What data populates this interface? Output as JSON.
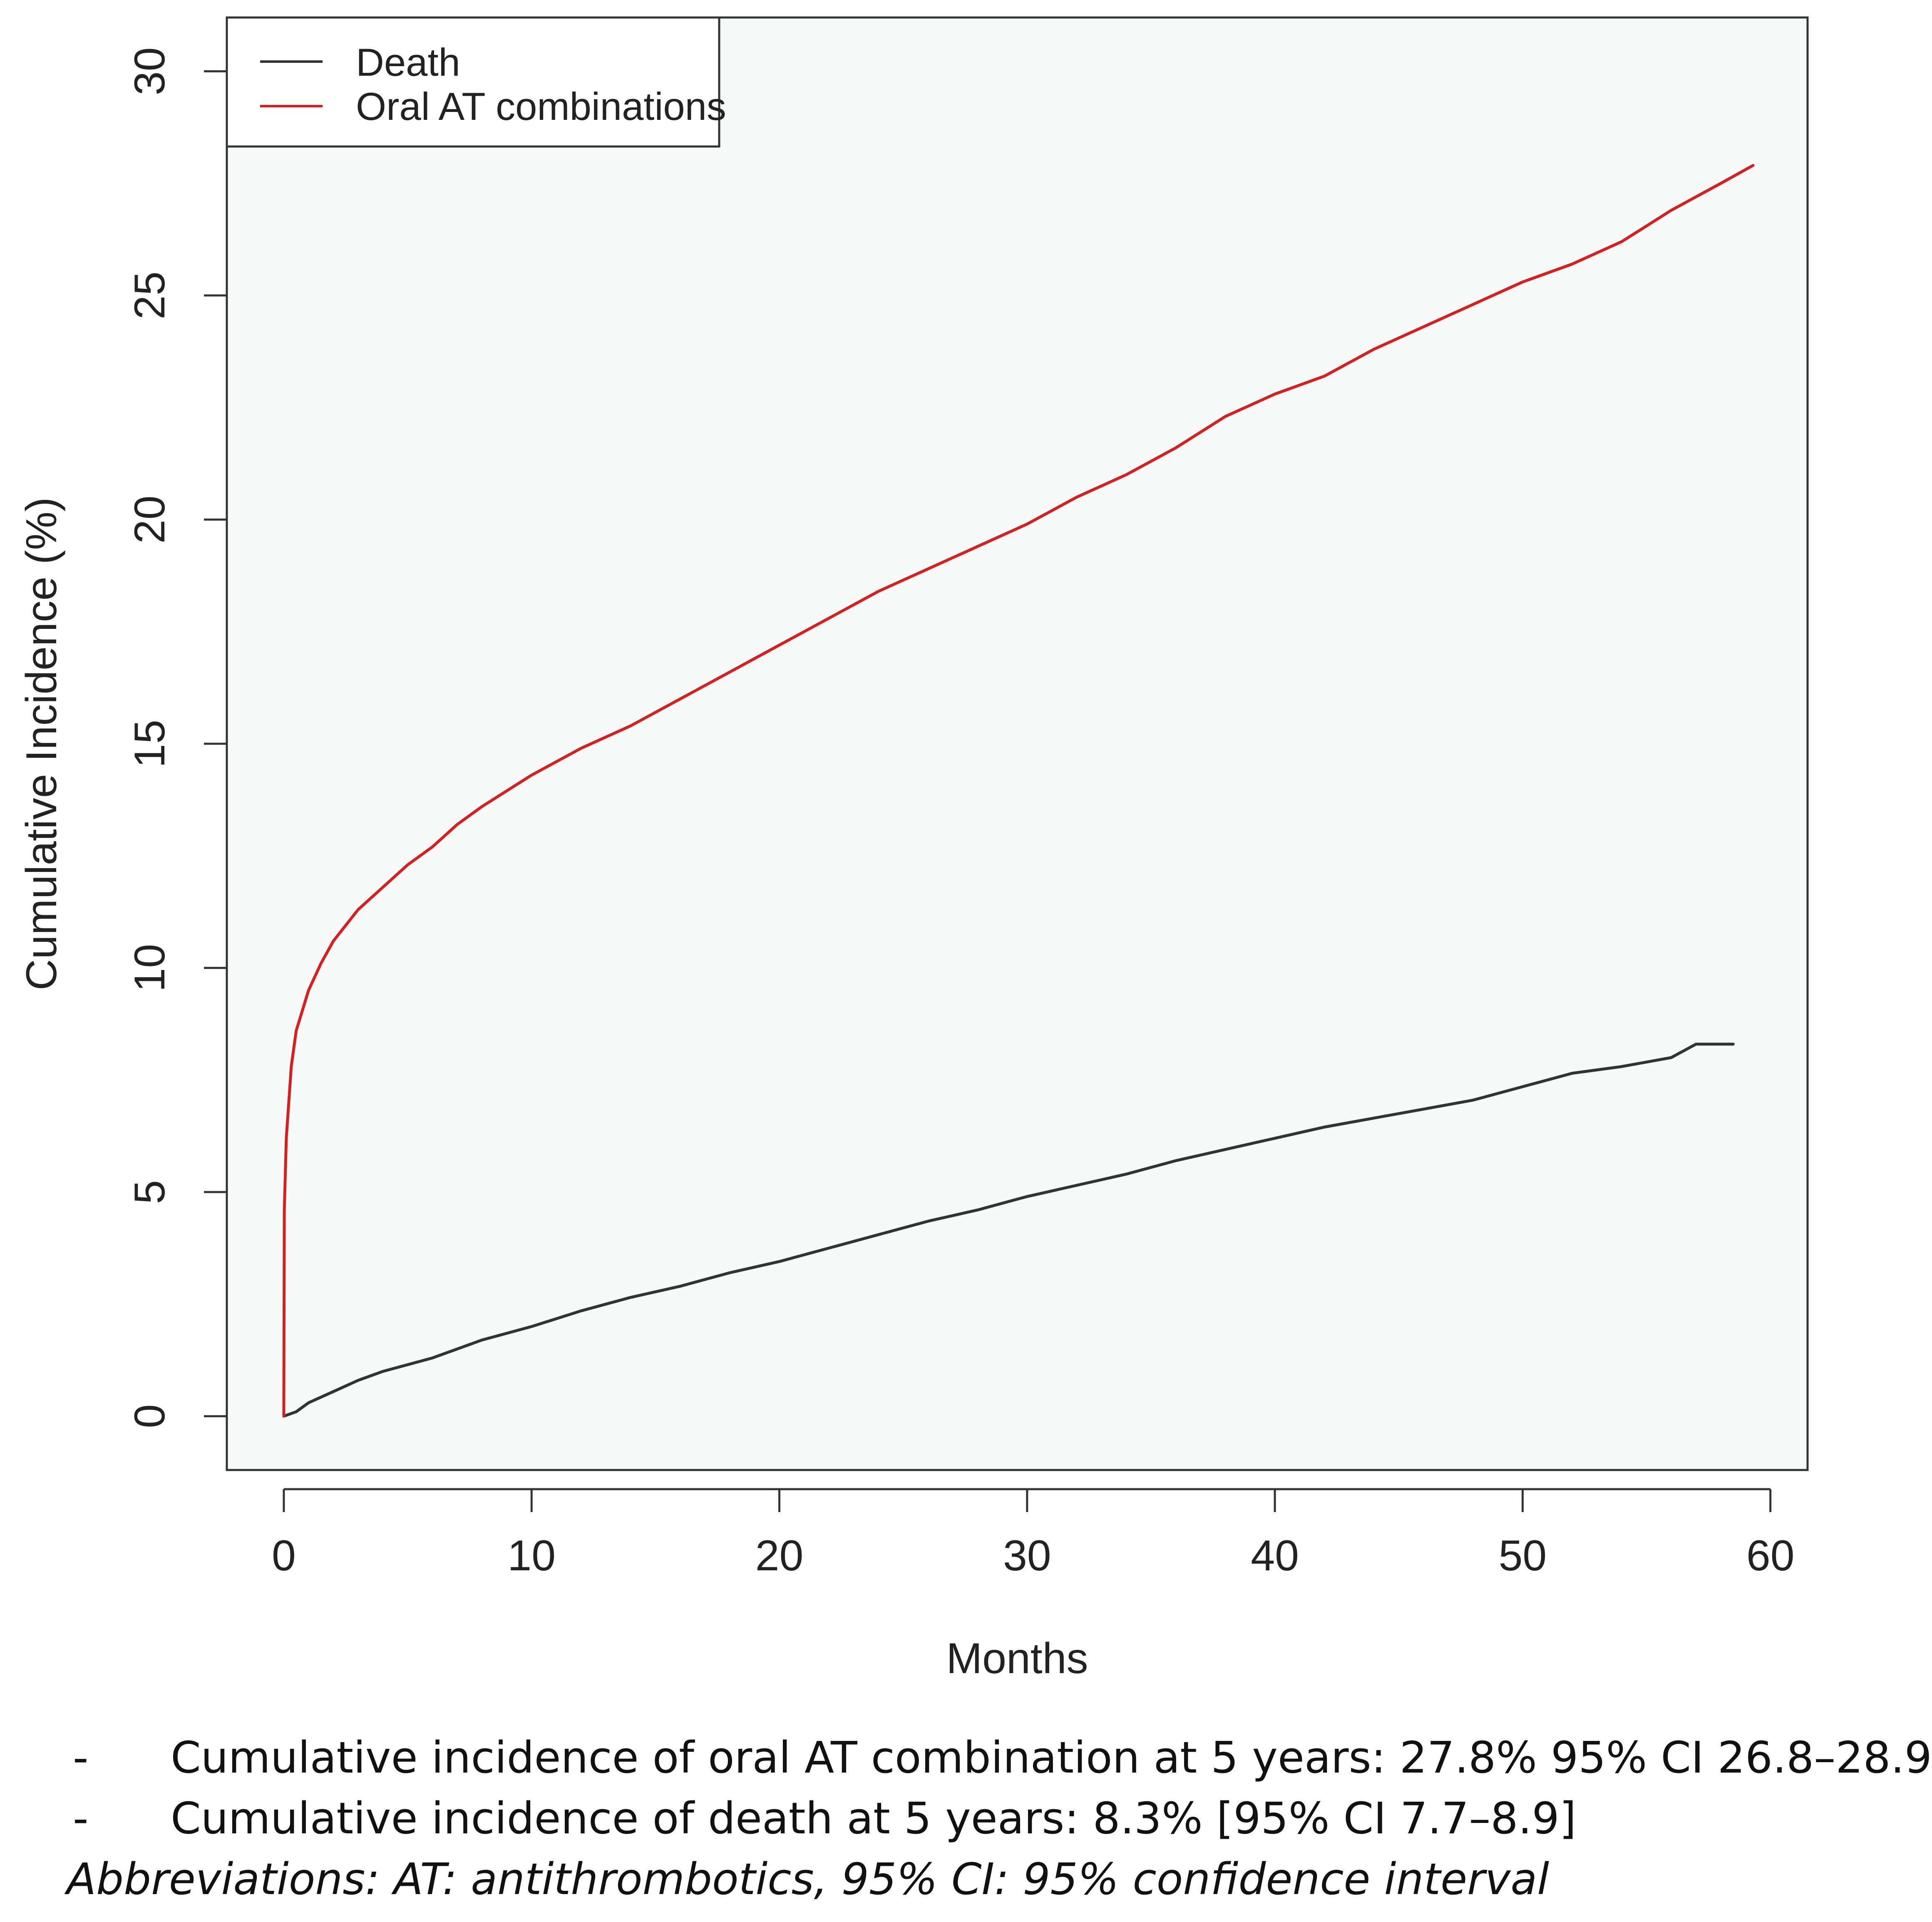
{
  "colors": {
    "plot_background": "#f7faf9",
    "axis": "#333333",
    "text": "#222222",
    "death_line": "#333333",
    "oral_at_line": "#d62020"
  },
  "chart_data": {
    "type": "line",
    "title": "",
    "xlabel": "Months",
    "ylabel": "Cumulative Incidence (%)",
    "xlim": [
      -2.3,
      61.5
    ],
    "ylim": [
      -1.2,
      31.2
    ],
    "x_ticks": [
      0,
      10,
      20,
      30,
      40,
      50,
      60
    ],
    "y_ticks": [
      0,
      5,
      10,
      15,
      20,
      25,
      30
    ],
    "grid": false,
    "legend": "top-left",
    "series": [
      {
        "name": "Death",
        "color": "#333333",
        "x": [
          0,
          0.5,
          1,
          2,
          3,
          4,
          5,
          6,
          7,
          8,
          9,
          10,
          12,
          14,
          16,
          18,
          20,
          22,
          24,
          26,
          28,
          30,
          32,
          34,
          36,
          38,
          40,
          42,
          44,
          46,
          48,
          50,
          52,
          54,
          56,
          57,
          58.5
        ],
        "values": [
          0,
          0.1,
          0.3,
          0.55,
          0.8,
          1.0,
          1.15,
          1.3,
          1.5,
          1.7,
          1.85,
          2.0,
          2.35,
          2.65,
          2.9,
          3.2,
          3.45,
          3.75,
          4.05,
          4.35,
          4.6,
          4.9,
          5.15,
          5.4,
          5.7,
          5.95,
          6.2,
          6.45,
          6.65,
          6.85,
          7.05,
          7.35,
          7.65,
          7.8,
          8.0,
          8.3,
          8.3
        ]
      },
      {
        "name": "Oral AT combinations",
        "color": "#d62020",
        "x": [
          0,
          0.02,
          0.1,
          0.3,
          0.5,
          1,
          1.5,
          2,
          3,
          4,
          5,
          6,
          7,
          8,
          10,
          12,
          14,
          16,
          18,
          20,
          22,
          24,
          26,
          28,
          30,
          32,
          34,
          36,
          38,
          40,
          42,
          44,
          46,
          48,
          50,
          52,
          54,
          56,
          58,
          59.3
        ],
        "values": [
          0,
          4.6,
          6.2,
          7.8,
          8.6,
          9.5,
          10.1,
          10.6,
          11.3,
          11.8,
          12.3,
          12.7,
          13.2,
          13.6,
          14.3,
          14.9,
          15.4,
          16.0,
          16.6,
          17.2,
          17.8,
          18.4,
          18.9,
          19.4,
          19.9,
          20.5,
          21.0,
          21.6,
          22.3,
          22.8,
          23.2,
          23.8,
          24.3,
          24.8,
          25.3,
          25.7,
          26.2,
          26.9,
          27.5,
          27.9
        ]
      }
    ]
  },
  "footnotes": {
    "items": [
      {
        "bullet": "-",
        "text": "Cumulative incidence of oral AT combination at 5 years: 27.8% 95% CI 26.8–28.9"
      },
      {
        "bullet": "-",
        "text": "Cumulative incidence of death at 5 years: 8.3% [95% CI 7.7–8.9]"
      }
    ],
    "abbreviations": "Abbreviations: AT: antithrombotics, 95% CI: 95% confidence interval"
  }
}
